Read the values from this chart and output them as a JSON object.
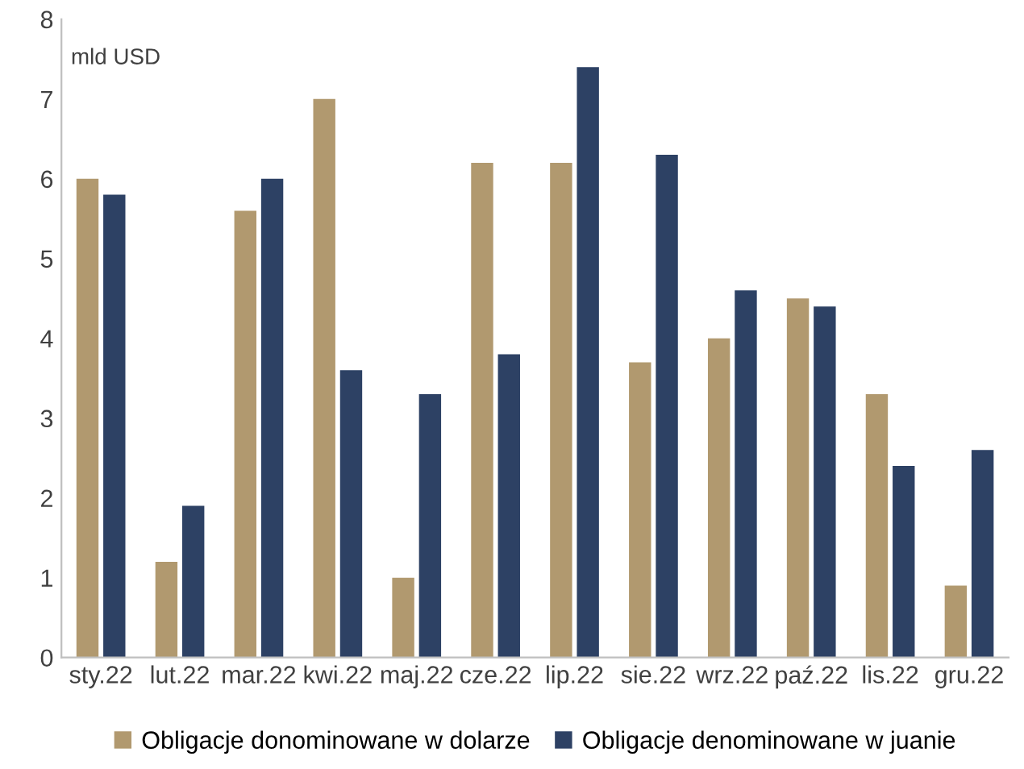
{
  "chart_data": {
    "type": "bar",
    "ylabel": "mld USD",
    "categories": [
      "sty.22",
      "lut.22",
      "mar.22",
      "kwi.22",
      "maj.22",
      "cze.22",
      "lip.22",
      "sie.22",
      "wrz.22",
      "paź.22",
      "lis.22",
      "gru.22"
    ],
    "series": [
      {
        "name": "Obligacje donominowane w dolarze",
        "color": "#b1996f",
        "values": [
          6.0,
          1.2,
          5.6,
          7.0,
          1.0,
          6.2,
          6.2,
          3.7,
          4.0,
          4.5,
          3.3,
          0.9
        ]
      },
      {
        "name": "Obligacje denominowane w juanie",
        "color": "#2d4164",
        "values": [
          5.8,
          1.9,
          6.0,
          3.6,
          3.3,
          3.8,
          7.4,
          6.3,
          4.6,
          4.4,
          2.4,
          2.6
        ]
      }
    ],
    "ylim": [
      0,
      8
    ],
    "yticks": [
      0,
      1,
      2,
      3,
      4,
      5,
      6,
      7,
      8
    ],
    "grid": false,
    "legend": "bottom"
  }
}
